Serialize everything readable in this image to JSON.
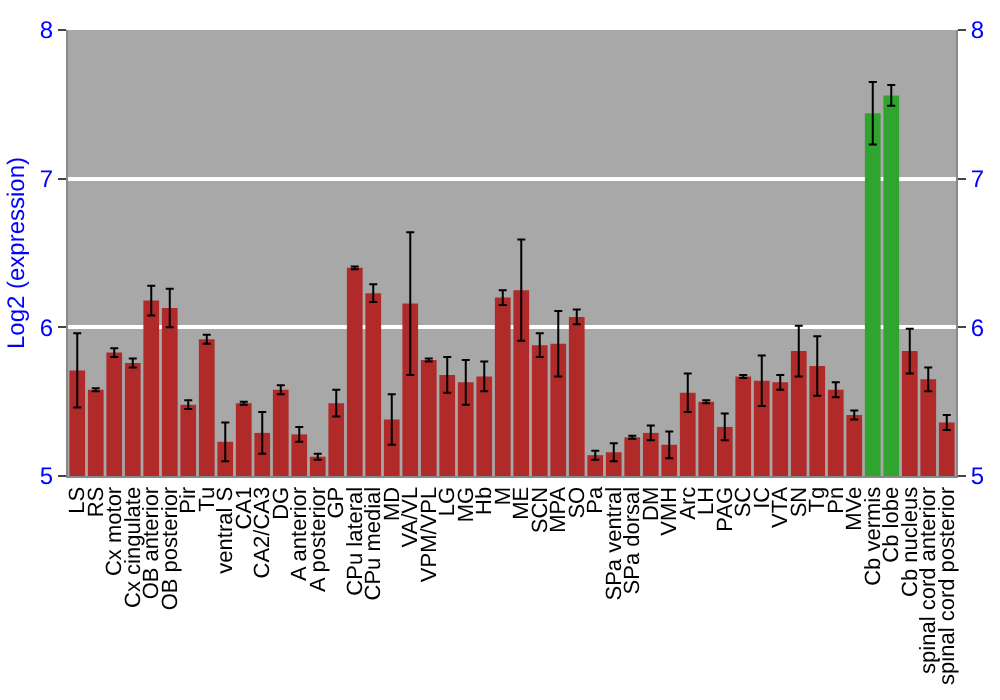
{
  "chart_data": {
    "type": "bar",
    "ylabel": "Log2 (expression)",
    "categories": [
      "LS",
      "RS",
      "Cx motor",
      "Cx cingulate",
      "OB anterior",
      "OB posterior",
      "Pir",
      "Tu",
      "ventral S",
      "CA1",
      "CA2/CA3",
      "DG",
      "A anterior",
      "A posterior",
      "GP",
      "CPu lateral",
      "CPu medial",
      "MD",
      "VA/VL",
      "VPM/VPL",
      "LG",
      "MG",
      "Hb",
      "M",
      "ME",
      "SCN",
      "MPA",
      "SO",
      "Pa",
      "SPa ventral",
      "SPa dorsal",
      "DM",
      "VMH",
      "Arc",
      "LH",
      "PAG",
      "SC",
      "IC",
      "VTA",
      "SN",
      "Tg",
      "Pn",
      "MVe",
      "Cb vermis",
      "Cb lobe",
      "Cb nucleus",
      "spinal cord anterior",
      "spinal cord posterior"
    ],
    "values": [
      5.71,
      5.58,
      5.83,
      5.76,
      6.18,
      6.13,
      5.48,
      5.92,
      5.23,
      5.49,
      5.29,
      5.58,
      5.28,
      5.13,
      5.49,
      6.4,
      6.23,
      5.38,
      6.16,
      5.78,
      5.68,
      5.63,
      5.67,
      6.2,
      6.25,
      5.88,
      5.89,
      6.07,
      5.14,
      5.16,
      5.26,
      5.29,
      5.21,
      5.56,
      5.5,
      5.33,
      5.67,
      5.64,
      5.63,
      5.84,
      5.74,
      5.58,
      5.41,
      7.44,
      7.56,
      5.84,
      5.65,
      5.36
    ],
    "errors": [
      0.25,
      0.01,
      0.03,
      0.03,
      0.1,
      0.13,
      0.03,
      0.03,
      0.13,
      0.01,
      0.14,
      0.03,
      0.05,
      0.02,
      0.09,
      0.01,
      0.06,
      0.17,
      0.48,
      0.01,
      0.12,
      0.15,
      0.1,
      0.05,
      0.34,
      0.08,
      0.22,
      0.05,
      0.03,
      0.06,
      0.01,
      0.05,
      0.09,
      0.13,
      0.01,
      0.09,
      0.01,
      0.17,
      0.05,
      0.17,
      0.2,
      0.05,
      0.03,
      0.21,
      0.07,
      0.15,
      0.08,
      0.05
    ],
    "colors": [
      "#b02a2a",
      "#b02a2a",
      "#b02a2a",
      "#b02a2a",
      "#b02a2a",
      "#b02a2a",
      "#b02a2a",
      "#b02a2a",
      "#b02a2a",
      "#b02a2a",
      "#b02a2a",
      "#b02a2a",
      "#b02a2a",
      "#b02a2a",
      "#b02a2a",
      "#b02a2a",
      "#b02a2a",
      "#b02a2a",
      "#b02a2a",
      "#b02a2a",
      "#b02a2a",
      "#b02a2a",
      "#b02a2a",
      "#b02a2a",
      "#b02a2a",
      "#b02a2a",
      "#b02a2a",
      "#b02a2a",
      "#b02a2a",
      "#b02a2a",
      "#b02a2a",
      "#b02a2a",
      "#b02a2a",
      "#b02a2a",
      "#b02a2a",
      "#b02a2a",
      "#b02a2a",
      "#b02a2a",
      "#b02a2a",
      "#b02a2a",
      "#b02a2a",
      "#b02a2a",
      "#b02a2a",
      "#2fa52f",
      "#2fa52f",
      "#b02a2a",
      "#b02a2a",
      "#b02a2a"
    ],
    "ylim": [
      5,
      8
    ],
    "yticks": [
      5,
      6,
      7,
      8
    ],
    "y2lim": [
      5,
      8
    ],
    "y2ticks": [
      5,
      6,
      7,
      8
    ],
    "grid": "y"
  }
}
